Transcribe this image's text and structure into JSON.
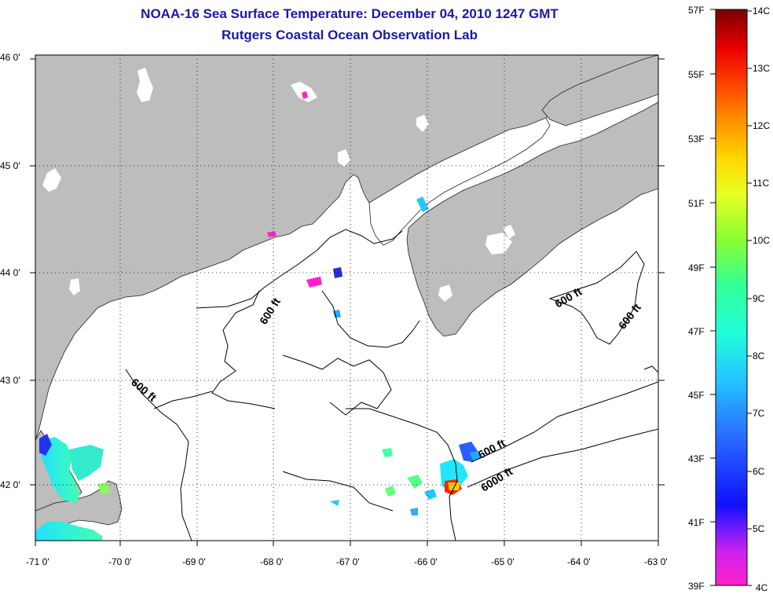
{
  "title": {
    "line1": "NOAA-16 Sea Surface Temperature:  December 04, 2010 1247 GMT",
    "line2": "Rutgers Coastal Ocean Observation Lab"
  },
  "lat_labels": [
    "46 0'",
    "45 0'",
    "44 0'",
    "43 0'",
    "42 0'"
  ],
  "lon_labels": [
    "-71 0'",
    "-70 0'",
    "-69 0'",
    "-68 0'",
    "-67 0'",
    "-66 0'",
    "-65 0'",
    "-64 0'",
    "-63 0'"
  ],
  "colorbar": {
    "fahrenheit": [
      "57F",
      "55F",
      "53F",
      "51F",
      "49F",
      "47F",
      "45F",
      "43F",
      "41F",
      "39F"
    ],
    "celsius": [
      "14C",
      "13C",
      "12C",
      "11C",
      "10C",
      "9C",
      "8C",
      "7C",
      "6C",
      "5C",
      "4C"
    ]
  },
  "contours": {
    "c1": "600 ft",
    "c2": "600 ft",
    "c3": "600 ft",
    "c4": "600 ft",
    "c5": "600 ft",
    "c6": "6000 ft"
  },
  "colors": {
    "land": "#bdbdbd",
    "ocean": "#ffffff",
    "title": "#1a1aa0"
  }
}
